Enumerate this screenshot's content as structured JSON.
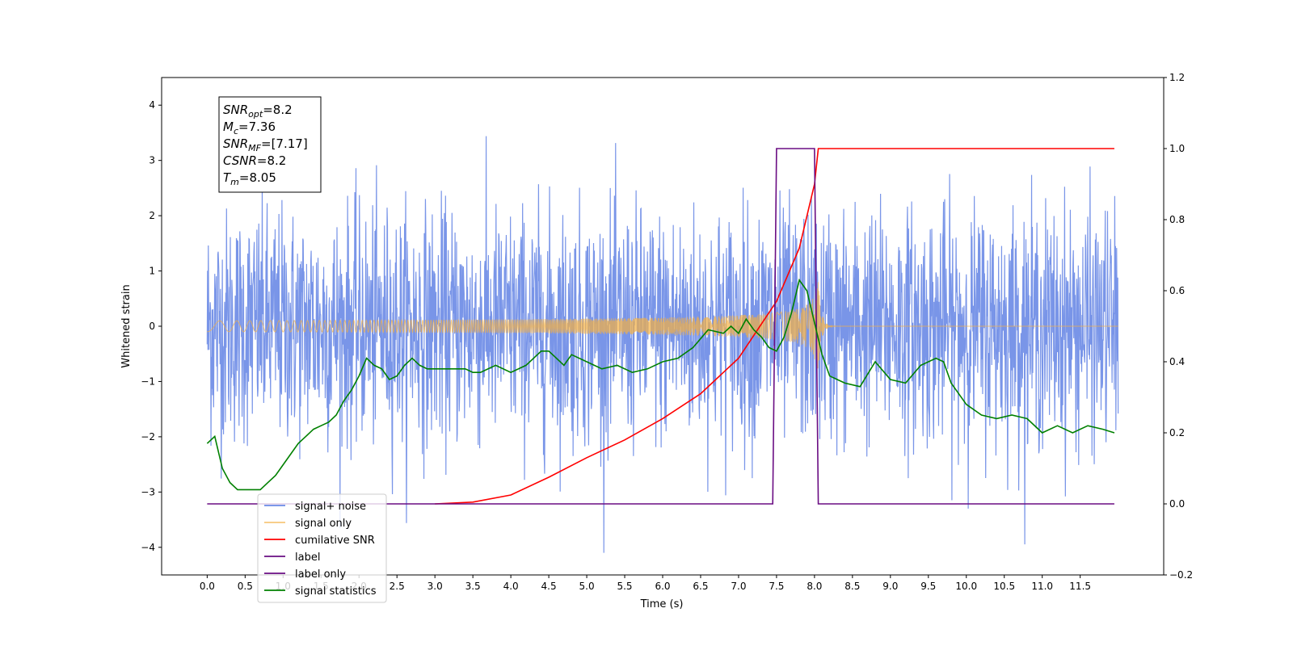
{
  "chart_data": {
    "type": "line",
    "xlabel": "Time (s)",
    "ylabel": "Whitened strain",
    "xlim": [
      -0.6,
      12.6
    ],
    "ylim": [
      -4.5,
      4.5
    ],
    "y2lim": [
      -0.2,
      1.2
    ],
    "xticks": [
      "0.0",
      "0.5",
      "1.0",
      "1.5",
      "2.0",
      "2.5",
      "3.0",
      "3.5",
      "4.0",
      "4.5",
      "5.0",
      "5.5",
      "6.0",
      "6.5",
      "7.0",
      "7.5",
      "8.0",
      "8.5",
      "9.0",
      "9.5",
      "10.0",
      "10.5",
      "11.0",
      "11.5"
    ],
    "yticks": [
      "4",
      "3",
      "2",
      "1",
      "0",
      "−1",
      "−2",
      "−3",
      "−4"
    ],
    "y2ticks": [
      "1.2",
      "1.0",
      "0.8",
      "0.6",
      "0.4",
      "0.2",
      "0.0",
      "−0.2"
    ],
    "annotation": [
      {
        "base": "SNR",
        "sub": "opt",
        "rest": "=8.2"
      },
      {
        "base": "M",
        "sub": "c",
        "rest": "=7.36"
      },
      {
        "base": "SNR",
        "sub": "MF",
        "rest": "=[7.17]"
      },
      {
        "base": "CSNR",
        "sub": "",
        "rest": "=8.2"
      },
      {
        "base": "T",
        "sub": "m",
        "rest": "=8.05"
      }
    ],
    "legend_position": "bottom-left",
    "series": [
      {
        "name": "signal+ noise",
        "color": "#6a8ae6",
        "axis": "left",
        "kind": "noise",
        "x_range": [
          0,
          12
        ],
        "envelope": [
          -2.5,
          2.5
        ],
        "peak_range": [
          -4.1,
          3.9
        ]
      },
      {
        "name": "signal only",
        "color": "#f5b041",
        "axis": "left",
        "kind": "chirp",
        "x_range": [
          0,
          12
        ],
        "merger_time": 8.05,
        "peak_amplitude": 0.8
      },
      {
        "name": "cumilative SNR",
        "color": "#ff0000",
        "axis": "right",
        "x": [
          3.0,
          3.5,
          4.0,
          4.5,
          5.0,
          5.5,
          6.0,
          6.5,
          7.0,
          7.5,
          7.8,
          8.0,
          8.05,
          11.95
        ],
        "y": [
          0.0,
          0.005,
          0.025,
          0.075,
          0.13,
          0.18,
          0.24,
          0.31,
          0.41,
          0.57,
          0.72,
          0.9,
          1.0,
          1.0
        ]
      },
      {
        "name": "label",
        "color": "#6a0d83",
        "axis": "right",
        "x": [
          0.0,
          7.45,
          7.5,
          8.0,
          8.05,
          11.95
        ],
        "y": [
          0.0,
          0.0,
          1.0,
          1.0,
          0.0,
          0.0
        ]
      },
      {
        "name": "label only",
        "color": "#6a0d83",
        "axis": "right",
        "x": [],
        "y": []
      },
      {
        "name": "signal statistics",
        "color": "#008000",
        "axis": "right",
        "x": [
          0.0,
          0.1,
          0.2,
          0.3,
          0.4,
          0.5,
          0.6,
          0.7,
          0.8,
          0.9,
          1.0,
          1.1,
          1.2,
          1.3,
          1.4,
          1.5,
          1.6,
          1.7,
          1.8,
          1.9,
          2.0,
          2.1,
          2.2,
          2.3,
          2.4,
          2.5,
          2.6,
          2.7,
          2.8,
          2.9,
          3.0,
          3.2,
          3.4,
          3.5,
          3.6,
          3.8,
          4.0,
          4.2,
          4.4,
          4.5,
          4.6,
          4.7,
          4.8,
          5.0,
          5.2,
          5.4,
          5.6,
          5.8,
          6.0,
          6.2,
          6.4,
          6.6,
          6.8,
          6.9,
          7.0,
          7.1,
          7.2,
          7.3,
          7.4,
          7.5,
          7.6,
          7.7,
          7.8,
          7.9,
          8.0,
          8.1,
          8.2,
          8.3,
          8.4,
          8.6,
          8.8,
          9.0,
          9.2,
          9.4,
          9.6,
          9.7,
          9.8,
          10.0,
          10.2,
          10.4,
          10.6,
          10.8,
          11.0,
          11.2,
          11.4,
          11.6,
          11.8,
          11.95
        ],
        "y": [
          0.17,
          0.19,
          0.1,
          0.06,
          0.04,
          0.04,
          0.04,
          0.04,
          0.06,
          0.08,
          0.11,
          0.14,
          0.17,
          0.19,
          0.21,
          0.22,
          0.23,
          0.25,
          0.29,
          0.32,
          0.36,
          0.41,
          0.39,
          0.38,
          0.35,
          0.36,
          0.39,
          0.41,
          0.39,
          0.38,
          0.38,
          0.38,
          0.38,
          0.37,
          0.37,
          0.39,
          0.37,
          0.39,
          0.43,
          0.43,
          0.41,
          0.39,
          0.42,
          0.4,
          0.38,
          0.39,
          0.37,
          0.38,
          0.4,
          0.41,
          0.44,
          0.49,
          0.48,
          0.5,
          0.48,
          0.52,
          0.49,
          0.47,
          0.44,
          0.43,
          0.47,
          0.54,
          0.63,
          0.6,
          0.51,
          0.42,
          0.36,
          0.35,
          0.34,
          0.33,
          0.4,
          0.35,
          0.34,
          0.39,
          0.41,
          0.4,
          0.34,
          0.28,
          0.25,
          0.24,
          0.25,
          0.24,
          0.2,
          0.22,
          0.2,
          0.22,
          0.21,
          0.2
        ]
      }
    ]
  }
}
